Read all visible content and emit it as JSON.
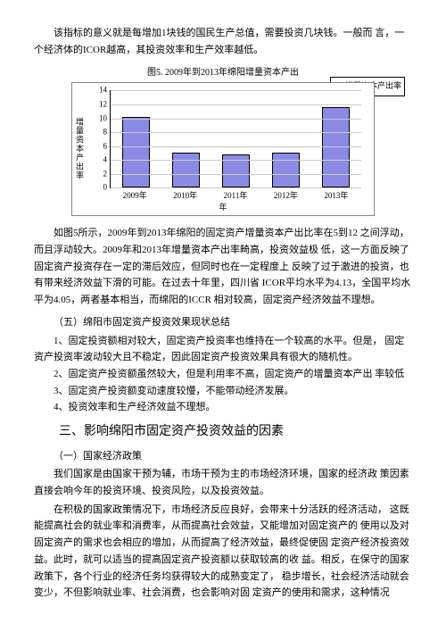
{
  "intro": {
    "p1": "该指标的意义就是每增加1块钱的国民生产总值，需要投资几块钱。一般而 言，一个经济体的ICOR越高，其投资效率和生产效率越低。"
  },
  "chart": {
    "title": "图5. 2009年到2013年绵阳增量资本产出",
    "type": "bar",
    "ylabel": "增量资本产出率",
    "xlabel": "年",
    "legend_label": "增量资本产出率",
    "categories": [
      "2009年",
      "2010年",
      "2011年",
      "2012年",
      "2013年"
    ],
    "values": [
      10.2,
      5.1,
      4.8,
      5.0,
      11.6
    ],
    "ylim": [
      0,
      14
    ],
    "ytick_step": 2,
    "bar_color": "#8b8be6",
    "grid_color": "#cccccc",
    "border_color": "#000000",
    "title_fontsize": 10,
    "label_fontsize": 9
  },
  "body": {
    "after_chart": "如图5所示，2009年到2013年绵阳的固定资产增量资本产出比率在5到12 之间浮动，而且浮动较大。2009年和2013年增量资本产出率畸高，投资效益极 低，这一方面反映了固定资产投资存在一定的滞后效应，但同时也在一定程度上 反映了过于激进的投资，也有带来经济效益下滑的可能。在过去十年里，四川省 ICOR平均水平为4.13，全国平均水平为4.05，两者基本相当，而绵阳的ICCR 相对较高，固定资产经济效益不理想。",
    "sec5_title": "（五）绵阳市固定资产投资效果现状总结",
    "item1": "1、固定投资额相对较大，固定资产投资率也维持在一个较高的水平。但是， 固定资产投资率波动较大且不稳定，因此固定资产投资效果具有很大的随机性。",
    "item2": "2、固定资产投资额虽然较大，但是利用率不高，固定资产的增量资本产出 率较低",
    "item3": "3、固定资产投资额变动速度较慢，不能带动经济发展。",
    "item4": "4、投资效率和生产经济效益不理想。",
    "h2": "三、影响绵阳市固定资产投资效益的因素",
    "sec_a_title": "（一）国家经济政策",
    "pa": "我们国家是由国家干预为辅，市场干预为主的市场经济环境，国家的经济政 策因素直接会响今年的投资环境、投资风险，以及投资效益。",
    "pb": "在积极的国家政策情况下，市场经济反应良好，会带来十分活跃的经济活动， 这既能提高社会的就业率和消费率，从而提高社会效益，又能增加对固定资产的 使用以及对固定资产的需求也会相应的增加，从而提高了经济效益，最终促使固 定资产经济投资效益。此时，就可以适当的提高固定资产投资额以获取较高的收 益。相反，在保守的国家政策下，各个行业的经济任务均获得较大的成熟变定了， 稳步增长，社会经济活动就会变少，不但影响就业率、社会消费，也会影响对固 定资产的使用和需求，这种情况"
  }
}
